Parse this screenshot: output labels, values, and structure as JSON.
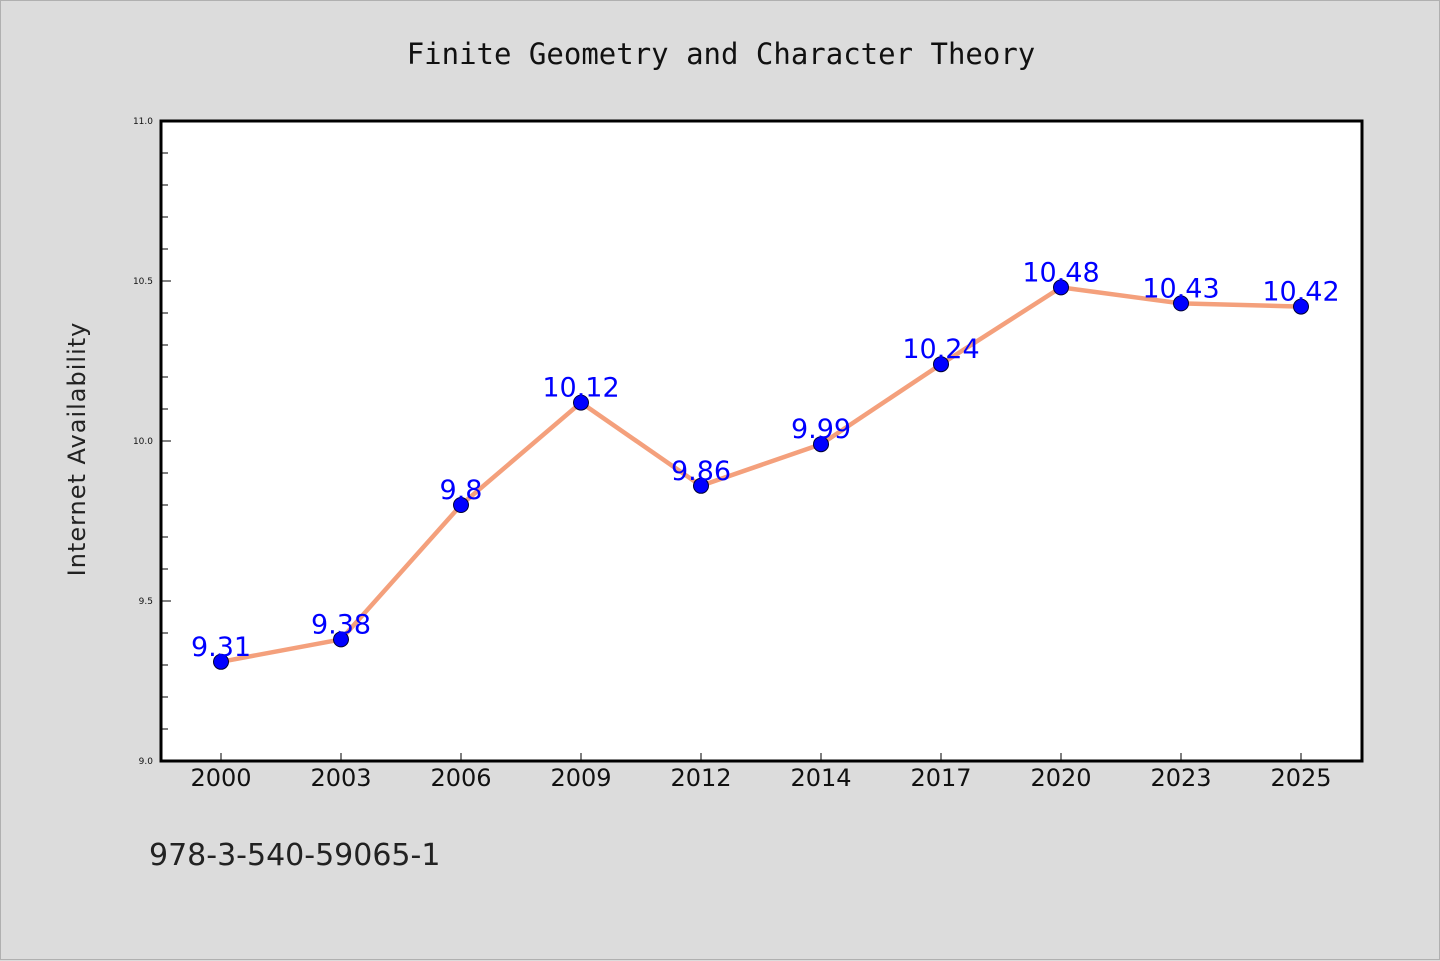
{
  "chart_data": {
    "type": "line",
    "title": "Finite Geometry and Character Theory",
    "xlabel": "",
    "ylabel": "Internet Availability",
    "categories": [
      "2000",
      "2003",
      "2006",
      "2009",
      "2012",
      "2014",
      "2017",
      "2020",
      "2023",
      "2025"
    ],
    "series": [
      {
        "values": [
          9.31,
          9.38,
          9.8,
          10.12,
          9.86,
          9.99,
          10.24,
          10.48,
          10.43,
          10.42
        ],
        "data_labels": [
          "9.31",
          "9.38",
          "9.8",
          "10.12",
          "9.86",
          "9.99",
          "10.24",
          "10.48",
          "10.43",
          "10.42"
        ]
      }
    ],
    "ylim": [
      9.0,
      11.0
    ],
    "yticks": [
      "9.0",
      "9.5",
      "10.0",
      "10.5",
      "11.0"
    ],
    "grid": false,
    "colors": {
      "line": "#f4a07c",
      "marker": "#0000ff",
      "label": "#0000ff"
    }
  },
  "footnote": "978-3-540-59065-1"
}
